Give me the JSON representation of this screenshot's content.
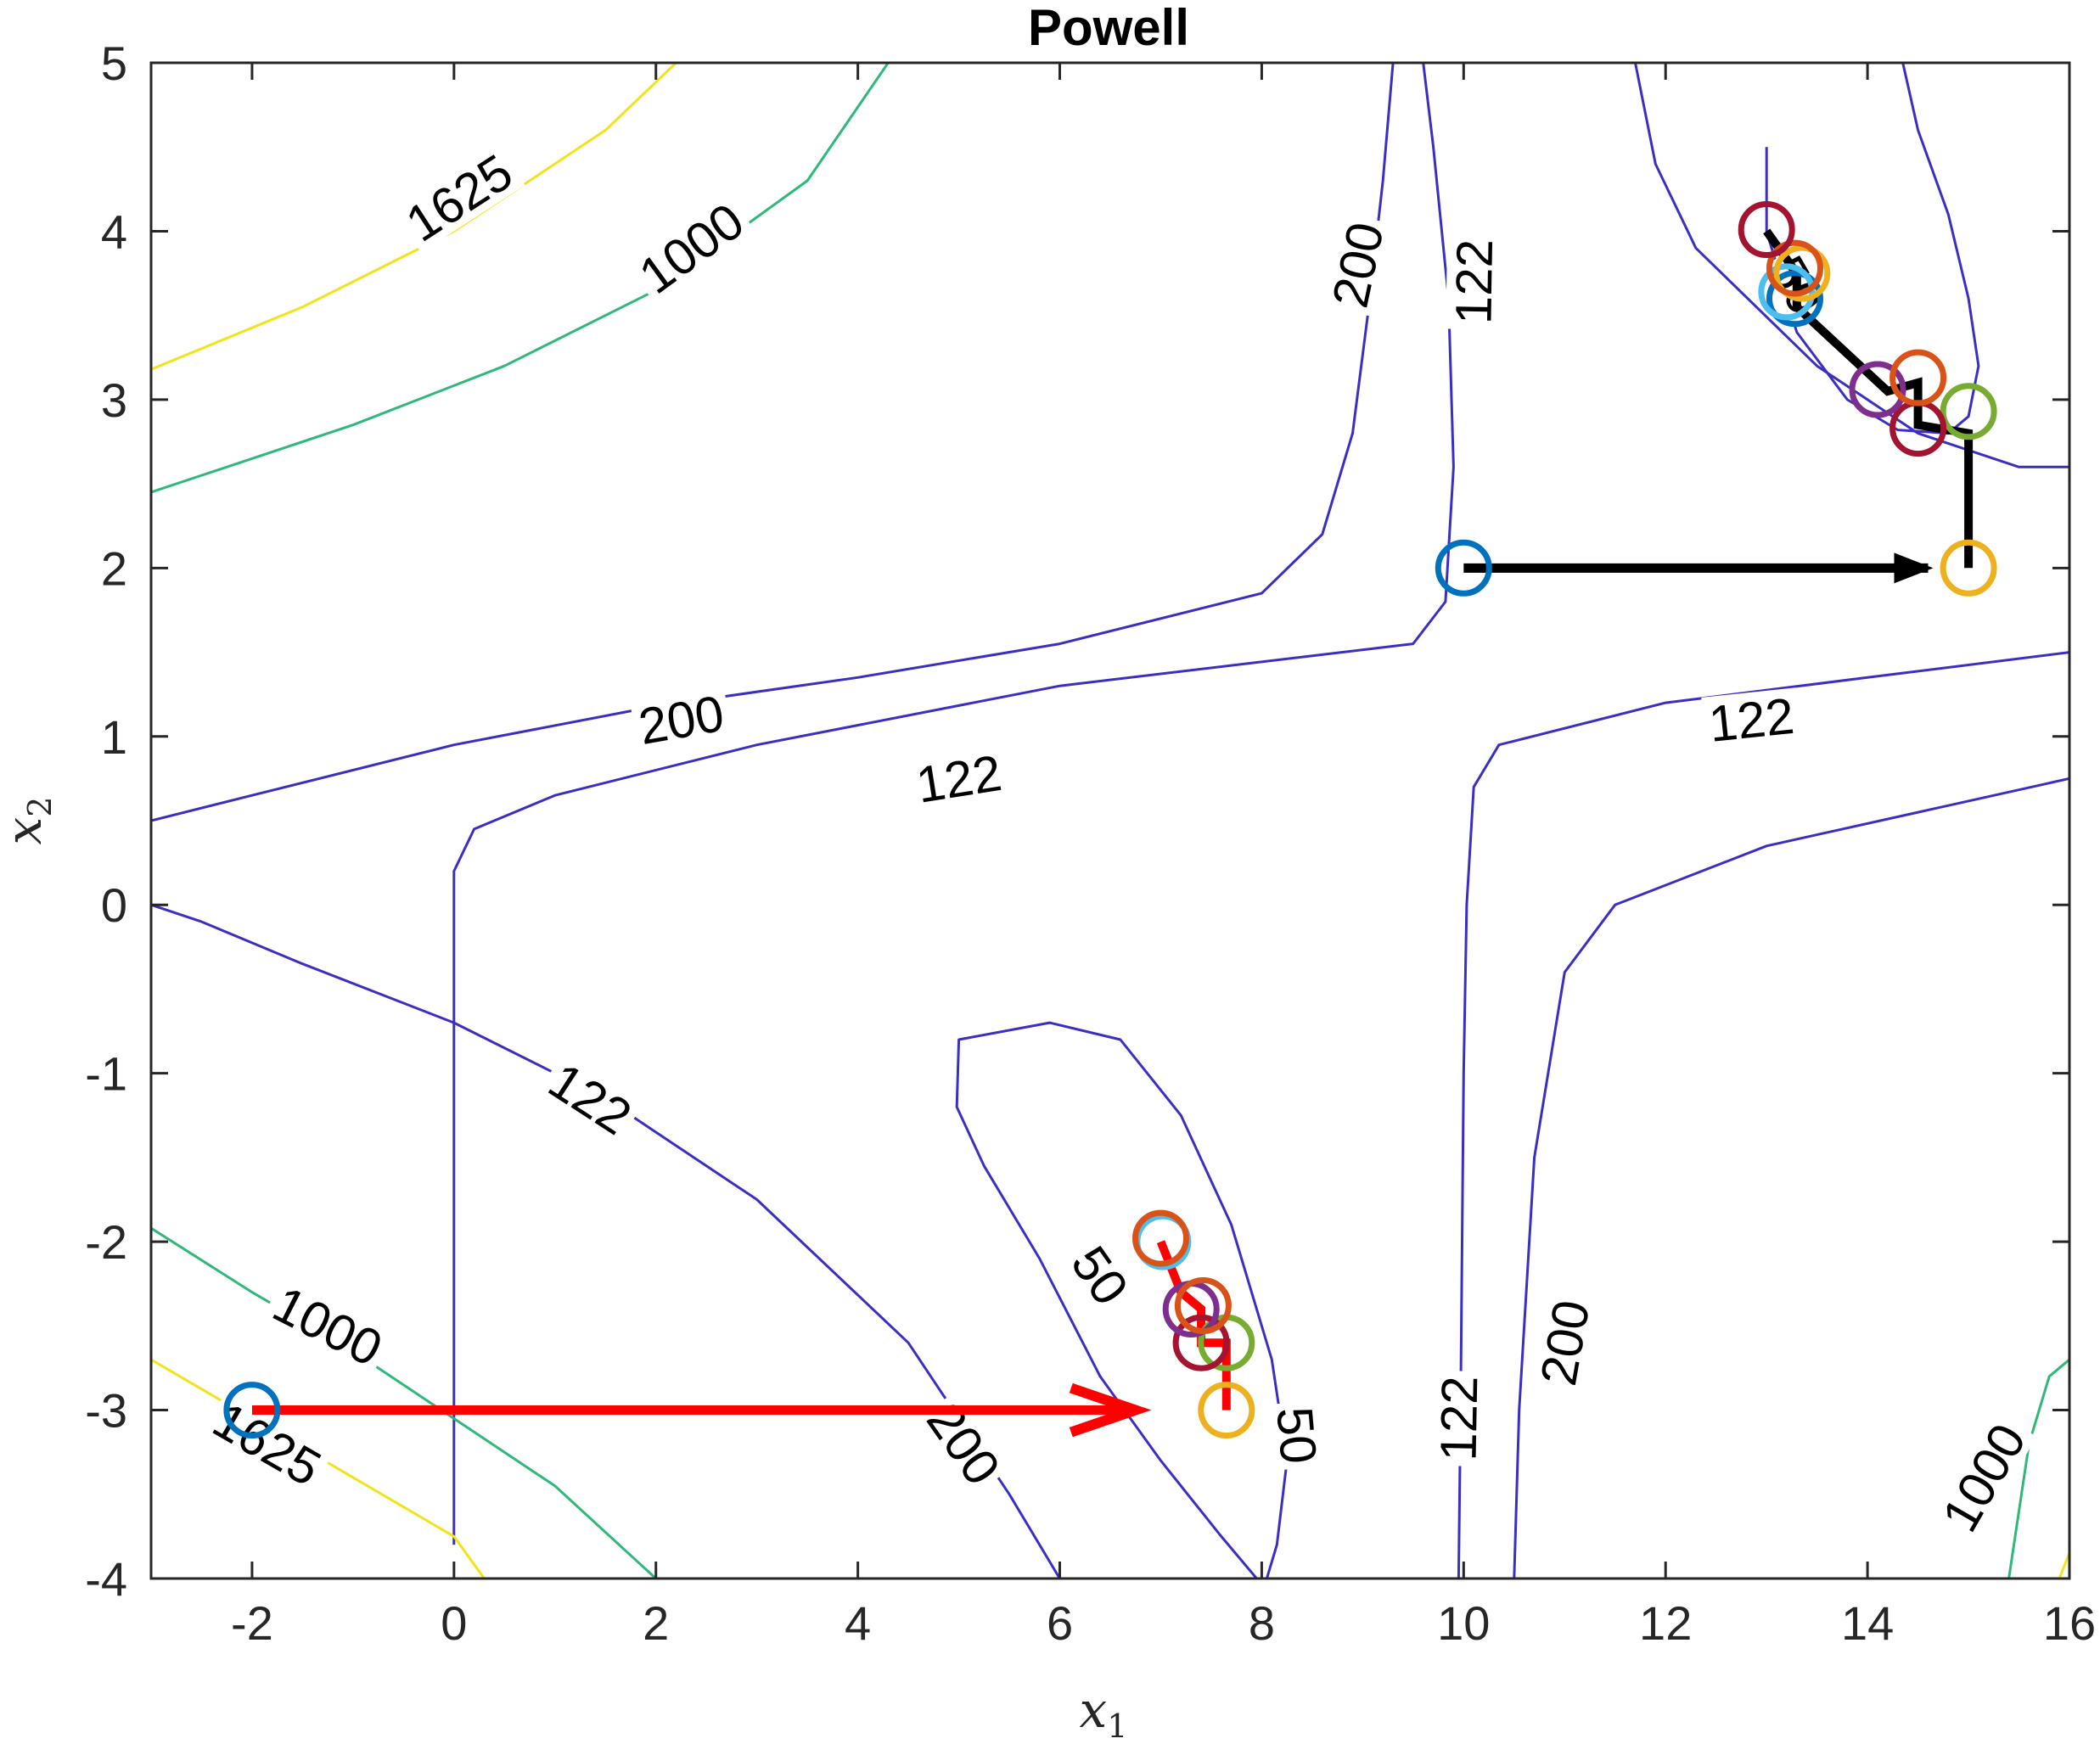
{
  "chart_data": {
    "type": "contour",
    "title": "Powell",
    "xlabel": "x",
    "xlabel_sub": "1",
    "ylabel": "x",
    "ylabel_sub": "2",
    "xlim": [
      -3,
      16
    ],
    "ylim": [
      -4,
      5
    ],
    "xticks": [
      -2,
      0,
      2,
      4,
      6,
      8,
      10,
      12,
      14,
      16
    ],
    "yticks": [
      -4,
      -3,
      -2,
      -1,
      0,
      1,
      2,
      3,
      4,
      5
    ],
    "grid": false,
    "colors": {
      "c50": "#3a2fc2",
      "c122": "#3a2fc2",
      "c200": "#3a2fc2",
      "c1000": "#2eb87a",
      "c1625": "#f2e41b",
      "path_a": "#000000",
      "path_b": "#ff0000"
    },
    "contours": [
      {
        "level": 50,
        "color_key": "c50",
        "polylines": [
          [
            [
              13.0,
              4.5
            ],
            [
              13.0,
              4.0
            ],
            [
              13.3,
              3.4
            ],
            [
              13.8,
              3.0
            ],
            [
              14.3,
              2.82
            ],
            [
              14.8,
              2.8
            ],
            [
              15.0,
              2.9
            ],
            [
              15.1,
              3.2
            ],
            [
              15.0,
              3.6
            ],
            [
              14.8,
              4.1
            ],
            [
              14.5,
              4.6
            ],
            [
              14.35,
              5.0
            ]
          ],
          [
            [
              8.05,
              -4.0
            ],
            [
              8.15,
              -3.8
            ],
            [
              8.25,
              -3.3
            ],
            [
              8.1,
              -2.7
            ],
            [
              7.7,
              -1.9
            ],
            [
              7.2,
              -1.25
            ],
            [
              6.6,
              -0.8
            ],
            [
              5.9,
              -0.7
            ],
            [
              5.0,
              -0.8
            ],
            [
              4.98,
              -1.2
            ],
            [
              5.25,
              -1.55
            ],
            [
              5.8,
              -2.1
            ],
            [
              6.4,
              -2.8
            ],
            [
              7.0,
              -3.3
            ],
            [
              7.6,
              -3.75
            ],
            [
              7.95,
              -4.0
            ]
          ]
        ]
      },
      {
        "level": 122,
        "color_key": "c122",
        "polylines": [
          [
            [
              0.0,
              -3.8
            ],
            [
              0.0,
              0.0
            ],
            [
              0.0,
              0.2
            ],
            [
              0.2,
              0.45
            ],
            [
              1.0,
              0.65
            ],
            [
              3.0,
              0.95
            ],
            [
              6.0,
              1.3
            ],
            [
              9.5,
              1.55
            ],
            [
              9.82,
              1.8
            ],
            [
              9.9,
              2.6
            ],
            [
              9.85,
              3.6
            ],
            [
              9.7,
              4.5
            ],
            [
              9.6,
              5.0
            ]
          ],
          [
            [
              9.95,
              -4.0
            ],
            [
              9.97,
              -3.0
            ],
            [
              10.0,
              -1.0
            ],
            [
              10.03,
              0.0
            ],
            [
              10.1,
              0.7
            ],
            [
              10.35,
              0.95
            ],
            [
              12.0,
              1.2
            ],
            [
              14.0,
              1.35
            ],
            [
              16.0,
              1.5
            ]
          ]
        ]
      },
      {
        "level": 200,
        "color_key": "c200",
        "polylines": [
          [
            [
              -3.0,
              0.5
            ],
            [
              -2.0,
              0.65
            ],
            [
              0.0,
              0.95
            ],
            [
              2.0,
              1.18
            ],
            [
              4.0,
              1.35
            ],
            [
              6.0,
              1.55
            ],
            [
              8.0,
              1.85
            ],
            [
              8.6,
              2.2
            ],
            [
              8.9,
              2.8
            ],
            [
              9.05,
              3.5
            ],
            [
              9.2,
              4.3
            ],
            [
              9.3,
              5.0
            ]
          ],
          [
            [
              -3.0,
              0.0
            ],
            [
              -2.5,
              -0.1
            ],
            [
              -1.5,
              -0.35
            ],
            [
              0.0,
              -0.7
            ],
            [
              1.5,
              -1.15
            ],
            [
              3.0,
              -1.75
            ],
            [
              4.5,
              -2.6
            ],
            [
              5.5,
              -3.5
            ],
            [
              6.0,
              -4.0
            ]
          ],
          [
            [
              10.5,
              -4.0
            ],
            [
              10.55,
              -3.0
            ],
            [
              10.7,
              -1.5
            ],
            [
              11.0,
              -0.4
            ],
            [
              11.5,
              0.0
            ],
            [
              13.0,
              0.35
            ],
            [
              14.5,
              0.55
            ],
            [
              16.0,
              0.75
            ]
          ],
          [
            [
              11.7,
              5.0
            ],
            [
              11.9,
              4.4
            ],
            [
              12.3,
              3.9
            ],
            [
              13.5,
              3.2
            ],
            [
              14.5,
              2.8
            ],
            [
              15.5,
              2.6
            ],
            [
              16.0,
              2.6
            ]
          ]
        ]
      },
      {
        "level": 1000,
        "color_key": "c1000",
        "polylines": [
          [
            [
              -3.0,
              2.45
            ],
            [
              -1.0,
              2.85
            ],
            [
              0.5,
              3.2
            ],
            [
              2.0,
              3.65
            ],
            [
              3.5,
              4.3
            ],
            [
              4.3,
              5.0
            ]
          ],
          [
            [
              -3.0,
              -1.92
            ],
            [
              -2.0,
              -2.3
            ],
            [
              -1.0,
              -2.65
            ],
            [
              0.0,
              -3.05
            ],
            [
              1.0,
              -3.45
            ],
            [
              2.0,
              -4.0
            ]
          ],
          [
            [
              15.4,
              -4.0
            ],
            [
              15.6,
              -3.2
            ],
            [
              15.8,
              -2.8
            ],
            [
              16.0,
              -2.7
            ]
          ]
        ]
      },
      {
        "level": 1625,
        "color_key": "c1625",
        "polylines": [
          [
            [
              -3.0,
              3.18
            ],
            [
              -1.5,
              3.55
            ],
            [
              0.0,
              4.0
            ],
            [
              1.5,
              4.6
            ],
            [
              2.2,
              5.0
            ]
          ],
          [
            [
              -3.0,
              -2.7
            ],
            [
              -2.0,
              -3.05
            ],
            [
              -1.0,
              -3.4
            ],
            [
              0.0,
              -3.75
            ],
            [
              0.3,
              -4.0
            ]
          ],
          [
            [
              15.9,
              -4.0
            ],
            [
              16.0,
              -3.85
            ]
          ]
        ]
      }
    ],
    "contour_labels": [
      {
        "text": "1625",
        "x": 0.05,
        "y": 4.2,
        "angle": -33
      },
      {
        "text": "1000",
        "x": 2.35,
        "y": 3.9,
        "angle": -36
      },
      {
        "text": "200",
        "x": 8.95,
        "y": 3.8,
        "angle": -78
      },
      {
        "text": "122",
        "x": 10.1,
        "y": 3.7,
        "angle": -89
      },
      {
        "text": "50",
        "x": 13.3,
        "y": 3.68,
        "angle": 60
      },
      {
        "text": "200",
        "x": 2.25,
        "y": 1.1,
        "angle": -10
      },
      {
        "text": "122",
        "x": 5.0,
        "y": 0.75,
        "angle": -9
      },
      {
        "text": "122",
        "x": 12.85,
        "y": 1.1,
        "angle": -6
      },
      {
        "text": "122",
        "x": 1.35,
        "y": -1.15,
        "angle": 33
      },
      {
        "text": "1000",
        "x": -1.25,
        "y": -2.5,
        "angle": 27
      },
      {
        "text": "1625",
        "x": -1.85,
        "y": -3.2,
        "angle": 30
      },
      {
        "text": "50",
        "x": 6.4,
        "y": -2.2,
        "angle": 55
      },
      {
        "text": "200",
        "x": 5.05,
        "y": -3.2,
        "angle": 55
      },
      {
        "text": "50",
        "x": 8.35,
        "y": -3.15,
        "angle": 85
      },
      {
        "text": "122",
        "x": 9.95,
        "y": -3.05,
        "angle": -89
      },
      {
        "text": "200",
        "x": 11.0,
        "y": -2.6,
        "angle": -80
      },
      {
        "text": "1000",
        "x": 15.15,
        "y": -3.4,
        "angle": -60
      }
    ],
    "series": [
      {
        "color_key": "path_a",
        "arrow": {
          "from": [
            10.0,
            2.0
          ],
          "to": [
            14.6,
            2.0
          ]
        },
        "path": [
          [
            15.0,
            2.0
          ],
          [
            15.0,
            2.8
          ],
          [
            14.5,
            2.85
          ],
          [
            14.5,
            3.1
          ],
          [
            14.2,
            3.05
          ],
          [
            13.3,
            3.55
          ],
          [
            13.3,
            3.75
          ],
          [
            13.0,
            4.0
          ]
        ],
        "markers": [
          {
            "x": 10.0,
            "y": 2.0,
            "color": "#0072bd"
          },
          {
            "x": 15.0,
            "y": 2.0,
            "color": "#edb120"
          },
          {
            "x": 15.0,
            "y": 2.93,
            "color": "#77ac30"
          },
          {
            "x": 14.5,
            "y": 2.83,
            "color": "#a2142f"
          },
          {
            "x": 14.1,
            "y": 3.06,
            "color": "#7e2f8e"
          },
          {
            "x": 14.5,
            "y": 3.13,
            "color": "#d95319"
          },
          {
            "x": 13.28,
            "y": 3.6,
            "color": "#0072bd"
          },
          {
            "x": 13.2,
            "y": 3.64,
            "color": "#4dbeee"
          },
          {
            "x": 13.35,
            "y": 3.75,
            "color": "#edb120"
          },
          {
            "x": 13.28,
            "y": 3.78,
            "color": "#d95319"
          },
          {
            "x": 13.0,
            "y": 4.01,
            "color": "#a2142f"
          }
        ]
      },
      {
        "color_key": "path_b",
        "arrow": {
          "from": [
            -2.0,
            -3.0
          ],
          "to": [
            6.7,
            -3.0
          ]
        },
        "path": [
          [
            7.65,
            -3.0
          ],
          [
            7.65,
            -2.6
          ],
          [
            7.4,
            -2.6
          ],
          [
            7.4,
            -2.4
          ],
          [
            7.2,
            -2.3
          ],
          [
            7.0,
            -2.0
          ]
        ],
        "markers": [
          {
            "x": -2.0,
            "y": -3.0,
            "color": "#0072bd"
          },
          {
            "x": 7.65,
            "y": -3.0,
            "color": "#edb120"
          },
          {
            "x": 7.65,
            "y": -2.6,
            "color": "#77ac30"
          },
          {
            "x": 7.4,
            "y": -2.6,
            "color": "#a2142f"
          },
          {
            "x": 7.3,
            "y": -2.4,
            "color": "#7e2f8e"
          },
          {
            "x": 7.42,
            "y": -2.38,
            "color": "#d95319"
          },
          {
            "x": 7.02,
            "y": -2.0,
            "color": "#4dbeee"
          },
          {
            "x": 7.0,
            "y": -1.98,
            "color": "#d95319"
          }
        ]
      }
    ]
  }
}
